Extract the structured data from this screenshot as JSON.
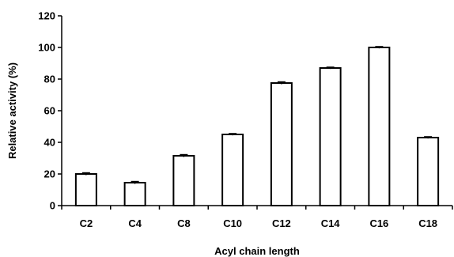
{
  "chart_data": {
    "type": "bar",
    "title": "",
    "xlabel": "Acyl chain length",
    "ylabel": "Relative activity (%)",
    "categories": [
      "C2",
      "C4",
      "C8",
      "C10",
      "C12",
      "C14",
      "C16",
      "C18"
    ],
    "values": [
      20,
      14.5,
      31.5,
      45,
      77.5,
      87,
      100,
      43
    ],
    "error": [
      0.8,
      0.8,
      0.8,
      0.6,
      0.8,
      0.6,
      0.6,
      0.6
    ],
    "ylim": [
      0,
      120
    ],
    "yticks": [
      0,
      20,
      40,
      60,
      80,
      100,
      120
    ],
    "grid": false,
    "legend": "none",
    "bar_fill": "#ffffff",
    "bar_stroke": "#000000"
  }
}
